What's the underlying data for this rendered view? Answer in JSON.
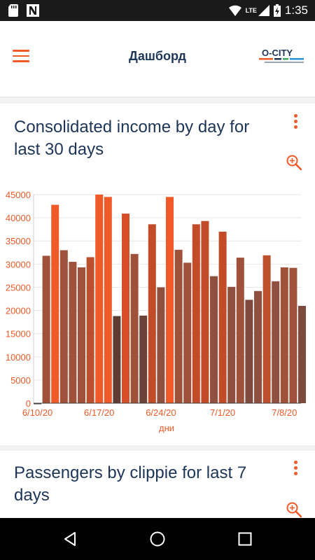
{
  "status_bar": {
    "time": "1:35",
    "network": "LTE",
    "icons": [
      "sd-card-icon",
      "n-notification-icon",
      "wifi-icon",
      "signal-icon",
      "battery-charging-icon"
    ]
  },
  "app_bar": {
    "title": "Дашборд",
    "logo_text": "O-CITY"
  },
  "cards": [
    {
      "title": "Consolidated income by day for last 30 days",
      "chart_data": {
        "type": "bar",
        "x_tick_labels": [
          "6/10/20",
          "6/17/20",
          "6/24/20",
          "7/1/20",
          "7/8/20"
        ],
        "xlabel": "дни",
        "ylim": [
          0,
          45000
        ],
        "y_ticks": [
          0,
          5000,
          10000,
          15000,
          20000,
          25000,
          30000,
          35000,
          40000,
          45000
        ],
        "grid": true,
        "values": [
          0,
          31800,
          42800,
          33000,
          30500,
          29300,
          31500,
          45000,
          44500,
          18800,
          40900,
          32200,
          18900,
          38600,
          25000,
          44500,
          33100,
          30300,
          38600,
          39300,
          27400,
          37000,
          25100,
          31400,
          22300,
          24200,
          31900,
          26300,
          29300,
          29200,
          21000
        ],
        "colors": [
          "#3b3b3b",
          "#a0513a",
          "#f05a28",
          "#a0513a",
          "#a0513a",
          "#a0513a",
          "#bc4f2e",
          "#f05a28",
          "#f05a28",
          "#5e3c33",
          "#d54e27",
          "#a0513a",
          "#6a4238",
          "#c24b28",
          "#8f5040",
          "#f05a28",
          "#a0513a",
          "#a0513a",
          "#c24b28",
          "#c24b28",
          "#8f5040",
          "#c24b28",
          "#8f5040",
          "#a0513a",
          "#7e4a3d",
          "#8f5040",
          "#bc4f2e",
          "#8f5040",
          "#a0513a",
          "#a0513a",
          "#7e4a3d"
        ]
      }
    },
    {
      "title": "Passengers by clippie for last 7 days"
    }
  ],
  "colors": {
    "accent": "#f05a28",
    "title_text": "#1d3557"
  }
}
